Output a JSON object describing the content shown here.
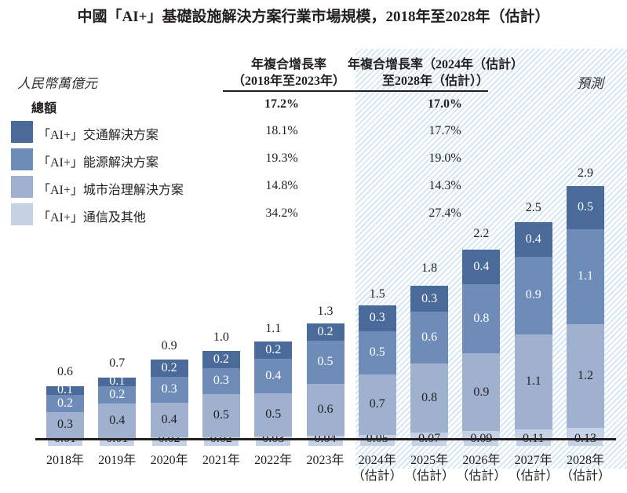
{
  "title": "中國「AI+」基礎設施解決方案行業市場規模，2018年至2028年（估計）",
  "unit_label": "人民幣萬億元",
  "forecast_label": "預測",
  "cagr_headers": [
    "年複合增長率\n（2018年至2023年）",
    "年複合增長率（2024年（估計）\n至2028年（估計））"
  ],
  "total_label": "總額",
  "total_cagr": [
    "17.2%",
    "17.0%"
  ],
  "colors": {
    "transport": "#4a6a9a",
    "energy": "#6f8cb8",
    "city": "#9fb1cf",
    "telecom": "#c5d1e4"
  },
  "legend": [
    {
      "label": "「AI+」交通解決方案",
      "cagr": [
        "18.1%",
        "17.7%"
      ]
    },
    {
      "label": "「AI+」能源解決方案",
      "cagr": [
        "19.3%",
        "19.0%"
      ]
    },
    {
      "label": "「AI+」城市治理解決方案",
      "cagr": [
        "14.8%",
        "14.3%"
      ]
    },
    {
      "label": "「AI+」通信及其他",
      "cagr": [
        "34.2%",
        "27.4%"
      ]
    }
  ],
  "chart_data": {
    "type": "bar",
    "stacked": true,
    "title": "中國「AI+」基礎設施解決方案行業市場規模，2018年至2028年（估計）",
    "ylabel": "人民幣萬億元",
    "categories": [
      "2018年",
      "2019年",
      "2020年",
      "2021年",
      "2022年",
      "2023年",
      "2024年\n（估計）",
      "2025年\n（估計）",
      "2026年\n（估計）",
      "2027年\n（估計）",
      "2028年\n（估計）"
    ],
    "forecast_from_index": 6,
    "totals": [
      "0.6",
      "0.7",
      "0.9",
      "1.0",
      "1.1",
      "1.3",
      "1.5",
      "1.8",
      "2.2",
      "2.5",
      "2.9"
    ],
    "series": [
      {
        "name": "「AI+」通信及其他",
        "values": [
          "0.01",
          "0.01",
          "0.02",
          "0.02",
          "0.03",
          "0.04",
          "0.05",
          "0.07",
          "0.09",
          "0.11",
          "0.13"
        ]
      },
      {
        "name": "「AI+」城市治理解決方案",
        "values": [
          "0.3",
          "0.4",
          "0.4",
          "0.5",
          "0.5",
          "0.6",
          "0.7",
          "0.8",
          "0.9",
          "1.1",
          "1.2"
        ]
      },
      {
        "name": "「AI+」能源解決方案",
        "values": [
          "0.2",
          "0.2",
          "0.3",
          "0.3",
          "0.4",
          "0.5",
          "0.5",
          "0.6",
          "0.8",
          "0.9",
          "1.1"
        ]
      },
      {
        "name": "「AI+」交通解決方案",
        "values": [
          "0.1",
          "0.1",
          "0.2",
          "0.2",
          "0.2",
          "0.2",
          "0.3",
          "0.3",
          "0.4",
          "0.4",
          "0.5"
        ]
      }
    ]
  }
}
